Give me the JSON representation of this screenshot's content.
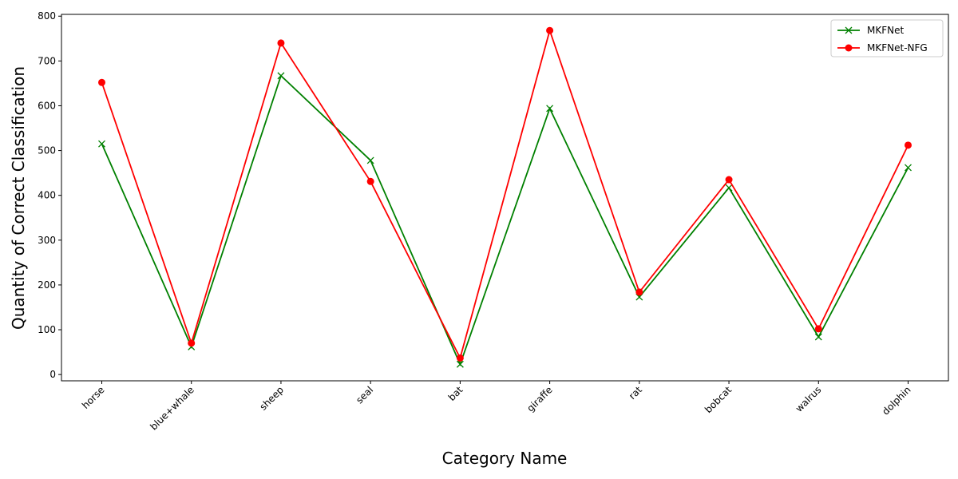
{
  "chart_data": {
    "type": "line",
    "x_label": "Category Name",
    "y_label": "Quantity of Correct Classification",
    "categories": [
      "horse",
      "blue+whale",
      "sheep",
      "seal",
      "bat",
      "giraffe",
      "rat",
      "bobcat",
      "walrus",
      "dolphin"
    ],
    "series": [
      {
        "name": "MKFNet",
        "color": "#008000",
        "marker": "x",
        "values": [
          515,
          62,
          667,
          478,
          23,
          594,
          173,
          417,
          84,
          462
        ]
      },
      {
        "name": "MKFNet-NFG",
        "color": "#ff0000",
        "marker": "o",
        "values": [
          652,
          70,
          740,
          431,
          37,
          768,
          184,
          435,
          102,
          512
        ]
      }
    ],
    "ylim": [
      -14,
      804
    ],
    "yticks": [
      0,
      100,
      200,
      300,
      400,
      500,
      600,
      700,
      800
    ],
    "legend": "upper right"
  }
}
